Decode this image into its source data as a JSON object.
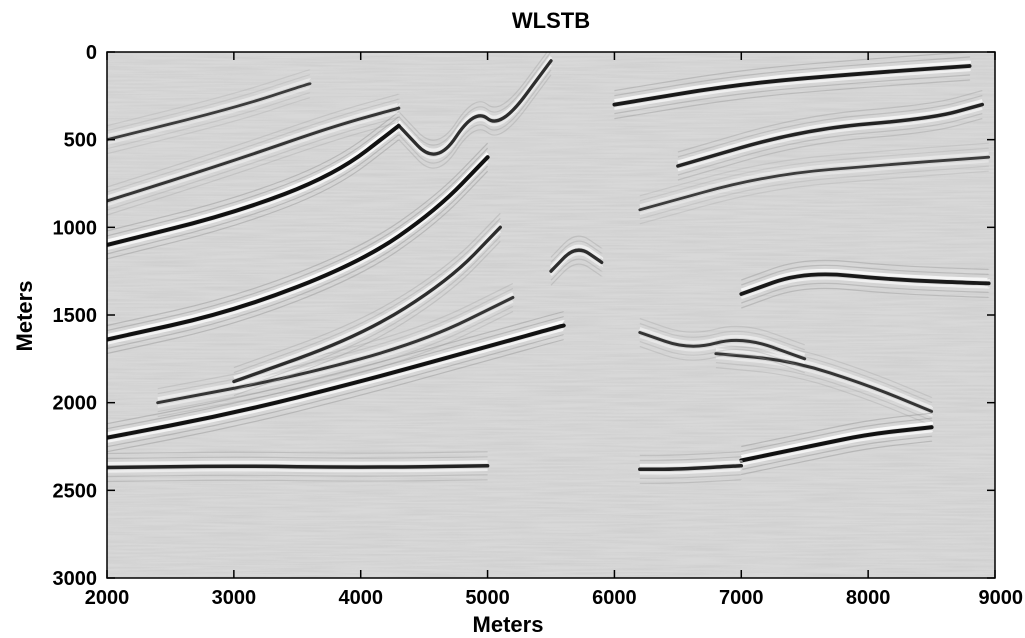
{
  "chart_data": {
    "type": "heatmap",
    "title": "WLSTB",
    "xlabel": "Meters",
    "ylabel": "Meters",
    "xlim": [
      2000,
      9000
    ],
    "ylim": [
      0,
      3000
    ],
    "y_reversed": true,
    "xticks": [
      2000,
      3000,
      4000,
      5000,
      6000,
      7000,
      8000,
      9000
    ],
    "yticks": [
      0,
      500,
      1000,
      1500,
      2000,
      2500,
      3000
    ],
    "colormap": "grayscale seismic amplitude",
    "grid": false,
    "colors": {
      "background": "#d8d8d8",
      "dark": "#111111",
      "light": "#ffffff"
    },
    "reflectors": [
      {
        "points": [
          [
            2000,
            1100
          ],
          [
            3000,
            920
          ],
          [
            3800,
            700
          ],
          [
            4300,
            420
          ]
        ],
        "strength": 1.0
      },
      {
        "points": [
          [
            2000,
            1640
          ],
          [
            3000,
            1480
          ],
          [
            4000,
            1200
          ],
          [
            4600,
            900
          ],
          [
            5000,
            600
          ]
        ],
        "strength": 1.0
      },
      {
        "points": [
          [
            2000,
            2200
          ],
          [
            3000,
            2060
          ],
          [
            4000,
            1880
          ],
          [
            5000,
            1680
          ],
          [
            5600,
            1560
          ]
        ],
        "strength": 1.0
      },
      {
        "points": [
          [
            2000,
            850
          ],
          [
            3000,
            620
          ],
          [
            3800,
            420
          ],
          [
            4300,
            320
          ]
        ],
        "strength": 0.6
      },
      {
        "points": [
          [
            2000,
            500
          ],
          [
            3000,
            320
          ],
          [
            3600,
            180
          ]
        ],
        "strength": 0.5
      },
      {
        "points": [
          [
            2400,
            2000
          ],
          [
            3500,
            1850
          ],
          [
            4500,
            1650
          ],
          [
            5200,
            1400
          ]
        ],
        "strength": 0.6
      },
      {
        "points": [
          [
            3000,
            1880
          ],
          [
            4000,
            1620
          ],
          [
            4700,
            1300
          ],
          [
            5100,
            1000
          ]
        ],
        "strength": 0.7
      },
      {
        "points": [
          [
            6000,
            300
          ],
          [
            7000,
            180
          ],
          [
            8000,
            120
          ],
          [
            8800,
            80
          ]
        ],
        "strength": 0.9
      },
      {
        "points": [
          [
            6500,
            650
          ],
          [
            7500,
            440
          ],
          [
            8500,
            380
          ],
          [
            8900,
            300
          ]
        ],
        "strength": 0.8
      },
      {
        "points": [
          [
            6200,
            900
          ],
          [
            7200,
            700
          ],
          [
            8200,
            640
          ],
          [
            8950,
            600
          ]
        ],
        "strength": 0.5
      },
      {
        "points": [
          [
            7000,
            1380
          ],
          [
            7500,
            1250
          ],
          [
            8200,
            1300
          ],
          [
            8950,
            1320
          ]
        ],
        "strength": 0.9
      },
      {
        "points": [
          [
            6800,
            1720
          ],
          [
            7400,
            1760
          ],
          [
            8000,
            1900
          ],
          [
            8500,
            2050
          ]
        ],
        "strength": 0.6
      },
      {
        "points": [
          [
            7000,
            2330
          ],
          [
            7600,
            2240
          ],
          [
            8000,
            2180
          ],
          [
            8500,
            2140
          ]
        ],
        "strength": 1.0
      },
      {
        "points": [
          [
            2000,
            2370
          ],
          [
            3000,
            2360
          ],
          [
            4000,
            2370
          ],
          [
            5000,
            2360
          ]
        ],
        "strength": 0.8
      },
      {
        "points": [
          [
            6200,
            2380
          ],
          [
            6500,
            2380
          ],
          [
            7000,
            2360
          ]
        ],
        "strength": 0.8
      },
      {
        "points": [
          [
            4300,
            420
          ],
          [
            4600,
            650
          ],
          [
            4900,
            320
          ],
          [
            5100,
            440
          ],
          [
            5500,
            50
          ]
        ],
        "strength": 0.7
      },
      {
        "points": [
          [
            5500,
            1250
          ],
          [
            5700,
            1100
          ],
          [
            5900,
            1200
          ]
        ],
        "strength": 0.7
      },
      {
        "points": [
          [
            6200,
            1600
          ],
          [
            6600,
            1700
          ],
          [
            7000,
            1620
          ],
          [
            7500,
            1750
          ]
        ],
        "strength": 0.6
      }
    ]
  }
}
